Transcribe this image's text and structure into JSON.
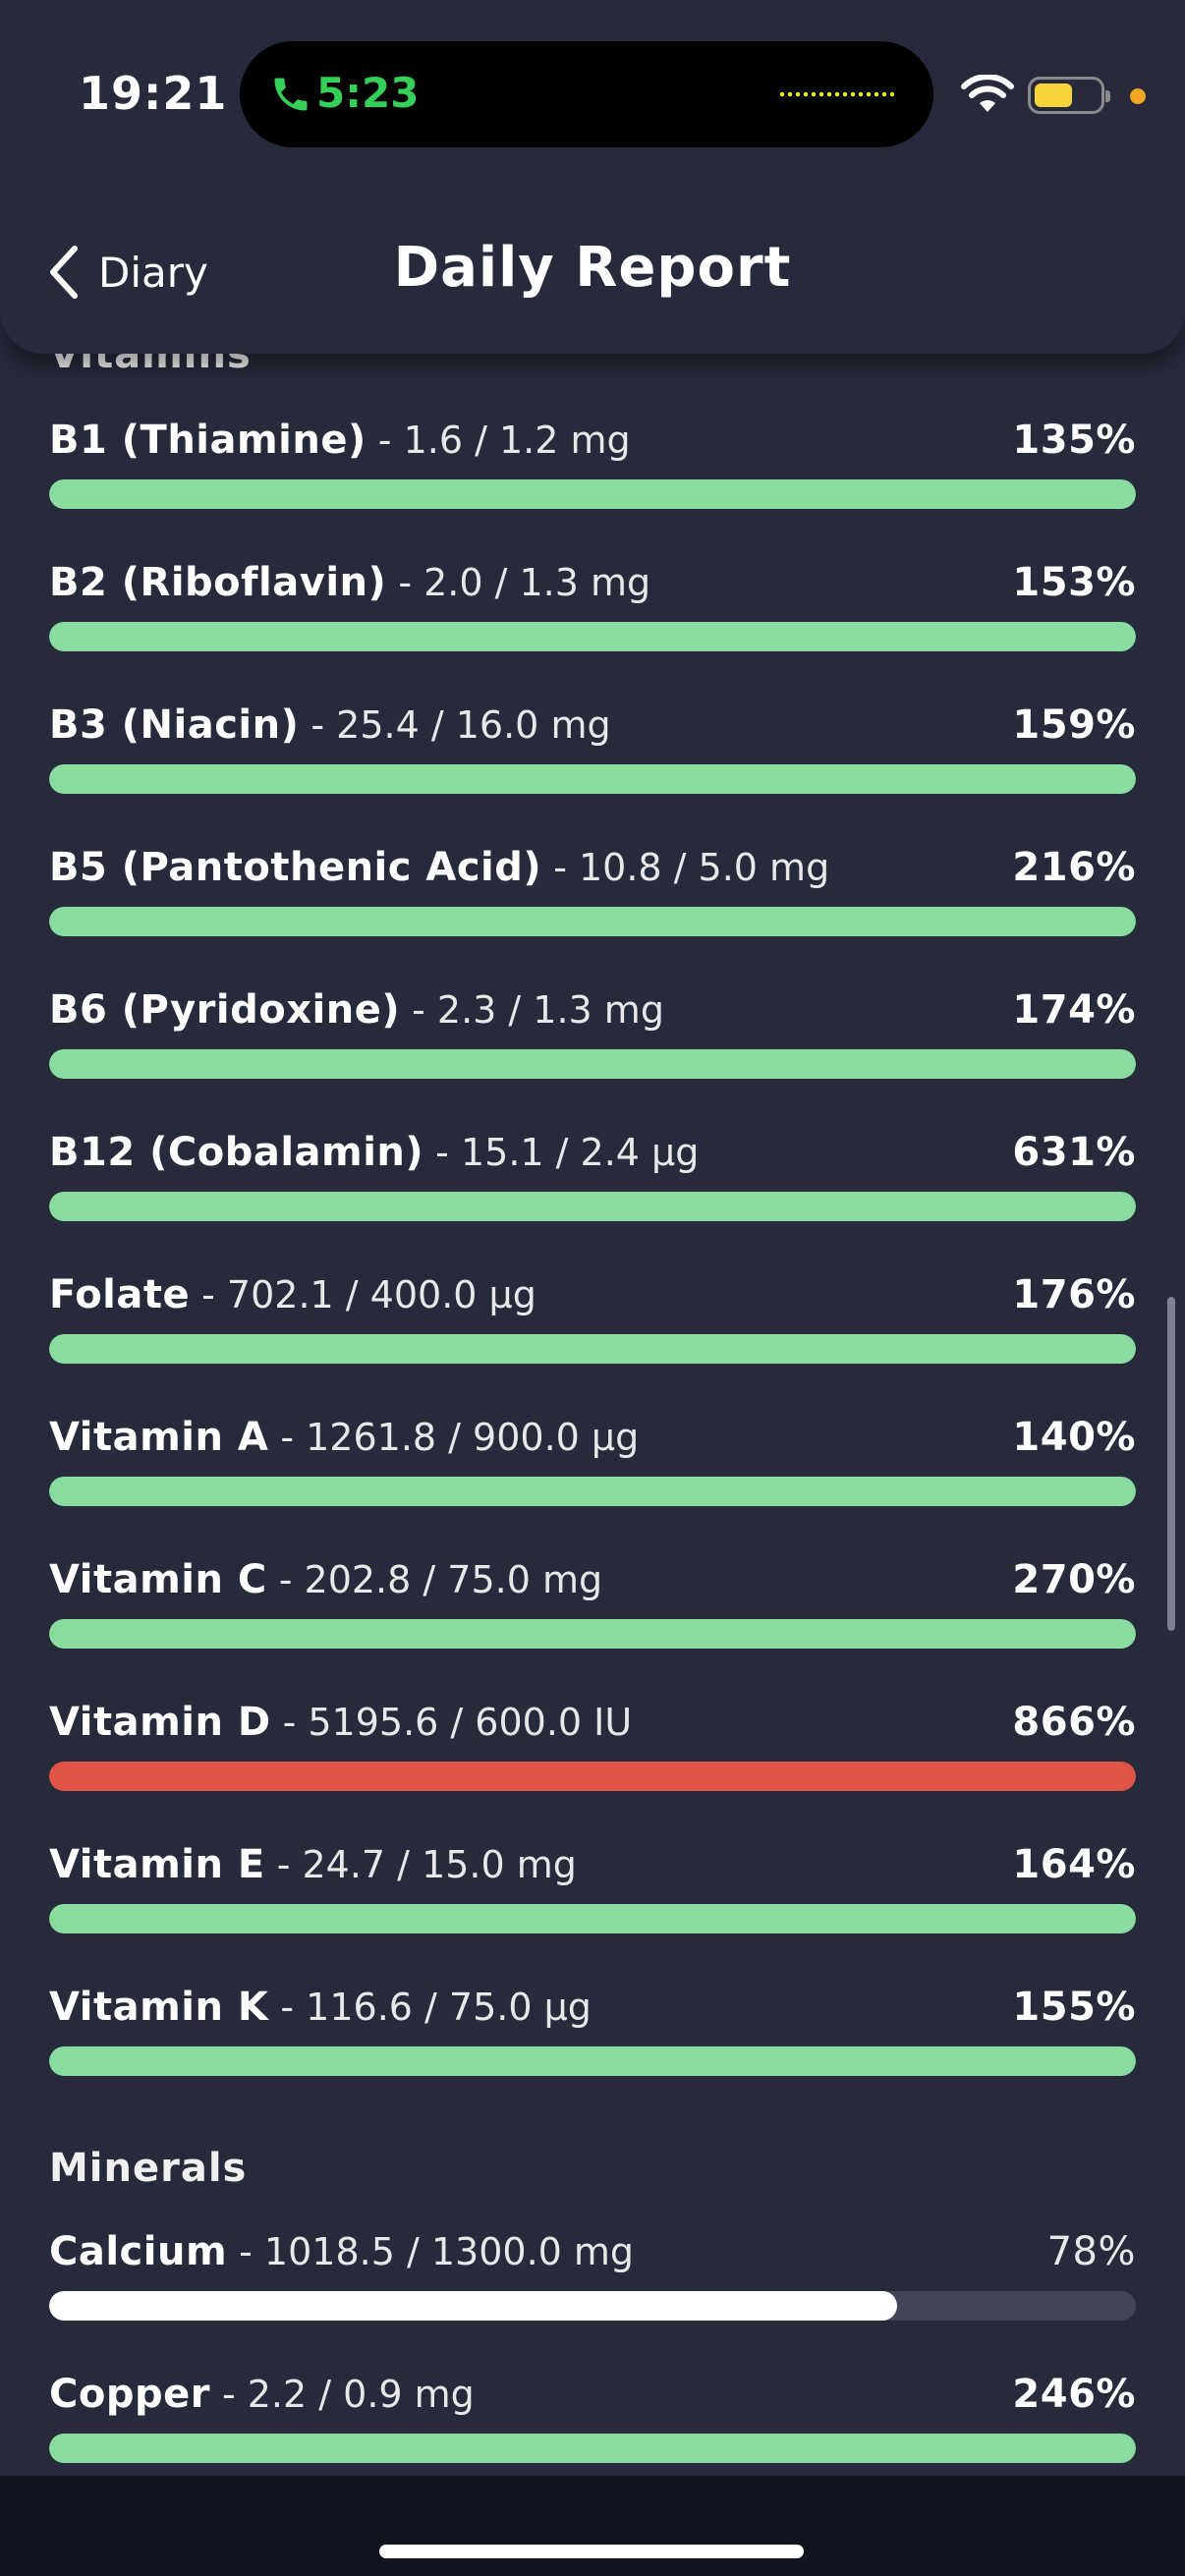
{
  "status_bar": {
    "time": "19:21",
    "call_timer": "5:23",
    "colors": {
      "call": "#34d058",
      "battery": "#f5d33a",
      "privacy_dot": "#f5a623"
    }
  },
  "header": {
    "back_label": "Diary",
    "title": "Daily Report"
  },
  "colors": {
    "background": "#262a3a",
    "good": "#88dca0",
    "over": "#e05447",
    "under": "#ffffff",
    "track": "#414556"
  },
  "sections": {
    "vitamins": {
      "title": "Vitamins",
      "items": [
        {
          "name": "B1 (Thiamine)",
          "amount": "- 1.6 / 1.2 mg",
          "percent": "135%",
          "fill": 100,
          "status": "good"
        },
        {
          "name": "B2 (Riboflavin)",
          "amount": "- 2.0 / 1.3 mg",
          "percent": "153%",
          "fill": 100,
          "status": "good"
        },
        {
          "name": "B3 (Niacin)",
          "amount": "- 25.4 / 16.0 mg",
          "percent": "159%",
          "fill": 100,
          "status": "good"
        },
        {
          "name": "B5 (Pantothenic Acid)",
          "amount": "- 10.8 / 5.0 mg",
          "percent": "216%",
          "fill": 100,
          "status": "good"
        },
        {
          "name": "B6 (Pyridoxine)",
          "amount": "- 2.3 / 1.3 mg",
          "percent": "174%",
          "fill": 100,
          "status": "good"
        },
        {
          "name": "B12 (Cobalamin)",
          "amount": "- 15.1 / 2.4 µg",
          "percent": "631%",
          "fill": 100,
          "status": "good"
        },
        {
          "name": "Folate",
          "amount": "- 702.1 / 400.0 µg",
          "percent": "176%",
          "fill": 100,
          "status": "good"
        },
        {
          "name": "Vitamin A",
          "amount": "- 1261.8 / 900.0 µg",
          "percent": "140%",
          "fill": 100,
          "status": "good"
        },
        {
          "name": "Vitamin C",
          "amount": "- 202.8 / 75.0 mg",
          "percent": "270%",
          "fill": 100,
          "status": "good"
        },
        {
          "name": "Vitamin D",
          "amount": "- 5195.6 / 600.0 IU",
          "percent": "866%",
          "fill": 100,
          "status": "over"
        },
        {
          "name": "Vitamin E",
          "amount": "- 24.7 / 15.0 mg",
          "percent": "164%",
          "fill": 100,
          "status": "good"
        },
        {
          "name": "Vitamin K",
          "amount": "- 116.6 / 75.0 µg",
          "percent": "155%",
          "fill": 100,
          "status": "good"
        }
      ]
    },
    "minerals": {
      "title": "Minerals",
      "items": [
        {
          "name": "Calcium",
          "amount": "- 1018.5 / 1300.0 mg",
          "percent": "78%",
          "fill": 78,
          "status": "under"
        },
        {
          "name": "Copper",
          "amount": "- 2.2 / 0.9 mg",
          "percent": "246%",
          "fill": 100,
          "status": "good"
        }
      ]
    }
  }
}
